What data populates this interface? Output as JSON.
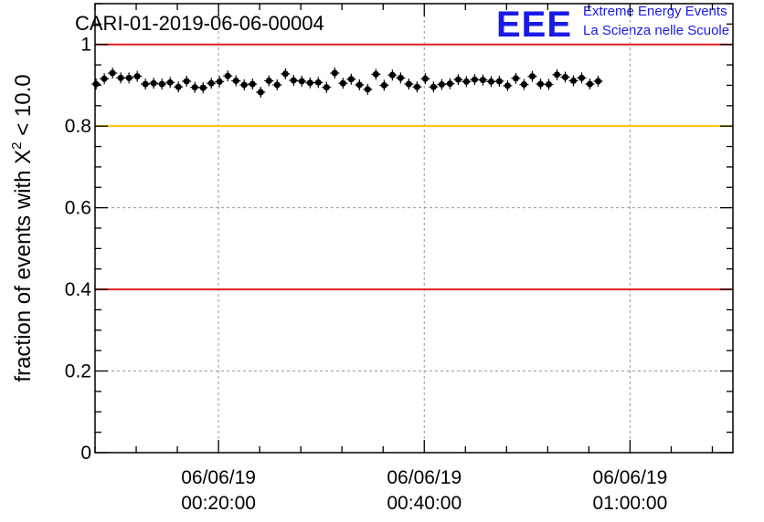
{
  "chart_data": {
    "type": "scatter",
    "title": "CARI-01-2019-06-06-00004",
    "ylabel_main": "fraction of events with X",
    "ylabel_sup": "2",
    "ylabel_tail": " < 10.0",
    "ylim": [
      0,
      1.1
    ],
    "xlim_minutes": [
      8,
      70
    ],
    "yticks": [
      {
        "value": 0,
        "label": "0"
      },
      {
        "value": 0.2,
        "label": "0.2"
      },
      {
        "value": 0.4,
        "label": "0.4"
      },
      {
        "value": 0.6,
        "label": "0.6"
      },
      {
        "value": 0.8,
        "label": "0.8"
      },
      {
        "value": 1,
        "label": "1"
      }
    ],
    "xticks": [
      {
        "minute": 20,
        "date": "06/06/19",
        "time": "00:20:00"
      },
      {
        "minute": 40,
        "date": "06/06/19",
        "time": "00:40:00"
      },
      {
        "minute": 60,
        "date": "06/06/19",
        "time": "01:00:00"
      }
    ],
    "hlines": [
      {
        "y": 1.0,
        "color": "#e02020"
      },
      {
        "y": 0.8,
        "color": "#ffc000"
      },
      {
        "y": 0.4,
        "color": "#e02020"
      }
    ],
    "grid": true,
    "marker_color": "#000000",
    "series": [
      {
        "x_start_minute": 8.1,
        "x_step_minutes": 0.8,
        "values": [
          0.903,
          0.916,
          0.93,
          0.918,
          0.918,
          0.922,
          0.903,
          0.905,
          0.903,
          0.907,
          0.896,
          0.91,
          0.895,
          0.894,
          0.905,
          0.909,
          0.923,
          0.911,
          0.901,
          0.903,
          0.883,
          0.911,
          0.901,
          0.928,
          0.912,
          0.91,
          0.906,
          0.907,
          0.895,
          0.93,
          0.905,
          0.915,
          0.901,
          0.89,
          0.927,
          0.9,
          0.925,
          0.918,
          0.903,
          0.896,
          0.916,
          0.896,
          0.902,
          0.904,
          0.914,
          0.909,
          0.914,
          0.913,
          0.909,
          0.91,
          0.899,
          0.917,
          0.902,
          0.922,
          0.903,
          0.902,
          0.926,
          0.92,
          0.911,
          0.918,
          0.903,
          0.91
        ]
      }
    ]
  },
  "logo": {
    "mark": "EEE",
    "line1": "Extreme Energy Events",
    "line2": "La Scienza nelle Scuole"
  }
}
